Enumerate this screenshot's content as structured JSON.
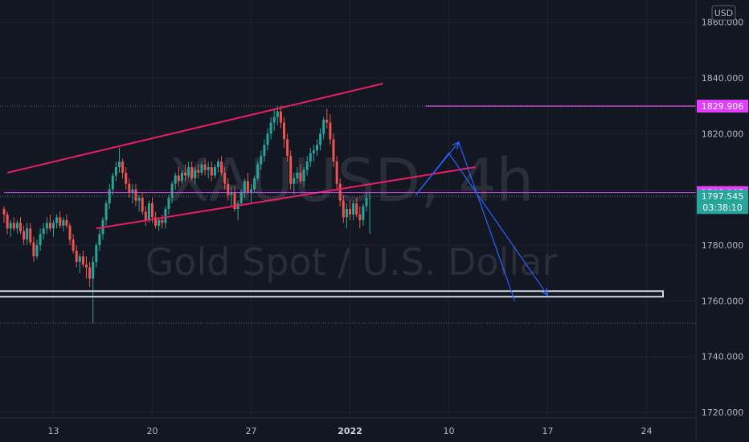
{
  "chart_data": {
    "type": "candlestick",
    "symbol": "XAUUSD, 4h",
    "description": "Gold Spot / U.S. Dollar",
    "currency": "USD",
    "y_range": [
      1718,
      1868
    ],
    "y_ticks": [
      "1720.000",
      "1740.000",
      "1760.000",
      "1780.000",
      "1800.000",
      "1820.000",
      "1840.000",
      "1860.000"
    ],
    "y_tick_values": [
      1720,
      1740,
      1760,
      1780,
      1800,
      1820,
      1840,
      1860
    ],
    "x_ticks": [
      {
        "label": "13",
        "bar": 15,
        "bold": false
      },
      {
        "label": "20",
        "bar": 45,
        "bold": false
      },
      {
        "label": "27",
        "bar": 75,
        "bold": false
      },
      {
        "label": "2022",
        "bar": 105,
        "bold": true
      },
      {
        "label": "10",
        "bar": 135,
        "bold": false
      },
      {
        "label": "17",
        "bar": 165,
        "bold": false
      },
      {
        "label": "24",
        "bar": 195,
        "bold": false
      }
    ],
    "price_labels": [
      {
        "label": "1829.906",
        "value": 1829.906,
        "color": "#e040fb"
      },
      {
        "label": "1798.867",
        "value": 1798.867,
        "color": "#e040fb"
      },
      {
        "label": "1797.545",
        "value": 1797.545,
        "color": "#26a69a",
        "countdown": "03:38:10"
      }
    ],
    "candles": [
      [
        1793,
        1794,
        1788,
        1791
      ],
      [
        1791,
        1792,
        1784,
        1786
      ],
      [
        1786,
        1789,
        1783,
        1788
      ],
      [
        1788,
        1790,
        1785,
        1786
      ],
      [
        1786,
        1789,
        1784,
        1788
      ],
      [
        1788,
        1790,
        1784,
        1785
      ],
      [
        1785,
        1787,
        1780,
        1782
      ],
      [
        1782,
        1788,
        1780,
        1786
      ],
      [
        1786,
        1788,
        1780,
        1781
      ],
      [
        1781,
        1783,
        1774,
        1776
      ],
      [
        1776,
        1782,
        1775,
        1780
      ],
      [
        1780,
        1786,
        1778,
        1784
      ],
      [
        1784,
        1788,
        1782,
        1786
      ],
      [
        1786,
        1790,
        1784,
        1788
      ],
      [
        1788,
        1791,
        1785,
        1786
      ],
      [
        1786,
        1789,
        1783,
        1788
      ],
      [
        1788,
        1791,
        1786,
        1790
      ],
      [
        1790,
        1792,
        1786,
        1787
      ],
      [
        1787,
        1790,
        1785,
        1789
      ],
      [
        1789,
        1791,
        1786,
        1787
      ],
      [
        1787,
        1788,
        1780,
        1782
      ],
      [
        1782,
        1784,
        1777,
        1778
      ],
      [
        1778,
        1780,
        1772,
        1774
      ],
      [
        1774,
        1777,
        1770,
        1776
      ],
      [
        1776,
        1778,
        1772,
        1773
      ],
      [
        1773,
        1776,
        1768,
        1772
      ],
      [
        1772,
        1774,
        1765,
        1768
      ],
      [
        1768,
        1776,
        1752,
        1774
      ],
      [
        1774,
        1781,
        1772,
        1780
      ],
      [
        1780,
        1786,
        1778,
        1784
      ],
      [
        1784,
        1790,
        1782,
        1789
      ],
      [
        1789,
        1796,
        1787,
        1795
      ],
      [
        1795,
        1802,
        1793,
        1800
      ],
      [
        1800,
        1806,
        1798,
        1805
      ],
      [
        1805,
        1810,
        1803,
        1808
      ],
      [
        1808,
        1815,
        1806,
        1810
      ],
      [
        1810,
        1811,
        1804,
        1806
      ],
      [
        1806,
        1808,
        1800,
        1802
      ],
      [
        1802,
        1804,
        1797,
        1799
      ],
      [
        1799,
        1802,
        1795,
        1800
      ],
      [
        1800,
        1802,
        1794,
        1796
      ],
      [
        1796,
        1798,
        1792,
        1797
      ],
      [
        1797,
        1799,
        1791,
        1792
      ],
      [
        1792,
        1794,
        1787,
        1789
      ],
      [
        1789,
        1796,
        1788,
        1795
      ],
      [
        1795,
        1797,
        1788,
        1790
      ],
      [
        1790,
        1792,
        1786,
        1787
      ],
      [
        1787,
        1790,
        1785,
        1789
      ],
      [
        1789,
        1791,
        1786,
        1788
      ],
      [
        1788,
        1794,
        1786,
        1793
      ],
      [
        1793,
        1798,
        1791,
        1797
      ],
      [
        1797,
        1803,
        1795,
        1802
      ],
      [
        1802,
        1806,
        1800,
        1805
      ],
      [
        1805,
        1808,
        1801,
        1803
      ],
      [
        1803,
        1807,
        1802,
        1806
      ],
      [
        1806,
        1809,
        1803,
        1805
      ],
      [
        1805,
        1810,
        1804,
        1808
      ],
      [
        1808,
        1810,
        1803,
        1804
      ],
      [
        1804,
        1808,
        1802,
        1807
      ],
      [
        1807,
        1809,
        1804,
        1806
      ],
      [
        1806,
        1810,
        1805,
        1809
      ],
      [
        1809,
        1811,
        1805,
        1807
      ],
      [
        1807,
        1810,
        1804,
        1808
      ],
      [
        1808,
        1810,
        1803,
        1805
      ],
      [
        1805,
        1809,
        1804,
        1808
      ],
      [
        1808,
        1811,
        1806,
        1810
      ],
      [
        1810,
        1812,
        1805,
        1806
      ],
      [
        1806,
        1808,
        1800,
        1802
      ],
      [
        1802,
        1804,
        1796,
        1798
      ],
      [
        1798,
        1801,
        1794,
        1799
      ],
      [
        1799,
        1801,
        1792,
        1793
      ],
      [
        1793,
        1796,
        1789,
        1795
      ],
      [
        1795,
        1800,
        1794,
        1799
      ],
      [
        1799,
        1804,
        1797,
        1803
      ],
      [
        1803,
        1806,
        1798,
        1799
      ],
      [
        1799,
        1802,
        1795,
        1800
      ],
      [
        1800,
        1805,
        1799,
        1804
      ],
      [
        1804,
        1810,
        1803,
        1809
      ],
      [
        1809,
        1814,
        1807,
        1812
      ],
      [
        1812,
        1818,
        1810,
        1816
      ],
      [
        1816,
        1822,
        1814,
        1820
      ],
      [
        1820,
        1826,
        1818,
        1824
      ],
      [
        1824,
        1829,
        1821,
        1826
      ],
      [
        1826,
        1830,
        1823,
        1828
      ],
      [
        1828,
        1830,
        1822,
        1824
      ],
      [
        1824,
        1826,
        1815,
        1818
      ],
      [
        1818,
        1820,
        1810,
        1812
      ],
      [
        1812,
        1814,
        1800,
        1802
      ],
      [
        1802,
        1806,
        1798,
        1804
      ],
      [
        1804,
        1808,
        1802,
        1806
      ],
      [
        1806,
        1809,
        1802,
        1803
      ],
      [
        1803,
        1808,
        1801,
        1807
      ],
      [
        1807,
        1812,
        1805,
        1810
      ],
      [
        1810,
        1815,
        1808,
        1813
      ],
      [
        1813,
        1816,
        1810,
        1814
      ],
      [
        1814,
        1818,
        1812,
        1816
      ],
      [
        1816,
        1822,
        1814,
        1820
      ],
      [
        1820,
        1826,
        1818,
        1825
      ],
      [
        1825,
        1829,
        1822,
        1824
      ],
      [
        1824,
        1827,
        1816,
        1818
      ],
      [
        1818,
        1820,
        1808,
        1810
      ],
      [
        1810,
        1812,
        1800,
        1802
      ],
      [
        1802,
        1804,
        1794,
        1796
      ],
      [
        1796,
        1798,
        1788,
        1790
      ],
      [
        1790,
        1795,
        1786,
        1793
      ],
      [
        1793,
        1796,
        1789,
        1791
      ],
      [
        1791,
        1796,
        1789,
        1795
      ],
      [
        1795,
        1797,
        1790,
        1791
      ],
      [
        1791,
        1794,
        1786,
        1789
      ],
      [
        1789,
        1795,
        1787,
        1794
      ],
      [
        1794,
        1799,
        1792,
        1797
      ],
      [
        1797,
        1799,
        1784,
        1797
      ]
    ],
    "drawings": {
      "channel_upper": [
        [
          1,
          1806
        ],
        [
          115,
          1838
        ]
      ],
      "channel_lower": [
        [
          28,
          1786
        ],
        [
          143,
          1808
        ]
      ],
      "hlines": [
        [
          1829.906,
          128
        ],
        [
          1798.867,
          0
        ]
      ],
      "support_zone": [
        1761.5,
        1763.5,
        -2,
        200
      ],
      "arrow_path_1": [
        [
          125,
          1798
        ],
        [
          138,
          1817
        ],
        [
          155,
          1760
        ]
      ],
      "arrow_path_2": [
        [
          125,
          1798
        ],
        [
          135,
          1813
        ],
        [
          165,
          1762
        ]
      ]
    }
  }
}
